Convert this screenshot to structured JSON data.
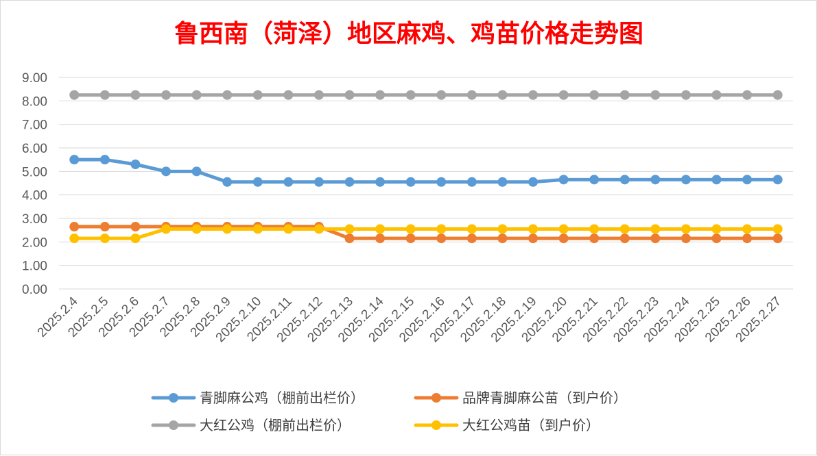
{
  "chart_data": {
    "type": "line",
    "title": "鲁西南（菏泽）地区麻鸡、鸡苗价格走势图",
    "xlabel": "",
    "ylabel": "",
    "ylim": [
      0,
      9
    ],
    "yticks": [
      "0.00",
      "1.00",
      "2.00",
      "3.00",
      "4.00",
      "5.00",
      "6.00",
      "7.00",
      "8.00",
      "9.00"
    ],
    "grid": true,
    "legend_position": "bottom",
    "categories": [
      "2025.2.4",
      "2025.2.5",
      "2025.2.6",
      "2025.2.7",
      "2025.2.8",
      "2025.2.9",
      "2025.2.10",
      "2025.2.11",
      "2025.2.12",
      "2025.2.13",
      "2025.2.14",
      "2025.2.15",
      "2025.2.16",
      "2025.2.17",
      "2025.2.18",
      "2025.2.19",
      "2025.2.20",
      "2025.2.21",
      "2025.2.22",
      "2025.2.23",
      "2025.2.24",
      "2025.2.25",
      "2025.2.26",
      "2025.2.27"
    ],
    "series": [
      {
        "name": "青脚麻公鸡（棚前出栏价）",
        "color": "#5b9bd5",
        "values": [
          5.5,
          5.5,
          5.3,
          5.0,
          5.0,
          4.55,
          4.55,
          4.55,
          4.55,
          4.55,
          4.55,
          4.55,
          4.55,
          4.55,
          4.55,
          4.55,
          4.65,
          4.65,
          4.65,
          4.65,
          4.65,
          4.65,
          4.65,
          4.65
        ]
      },
      {
        "name": "品牌青脚麻公苗（到户价）",
        "color": "#ed7d31",
        "values": [
          2.65,
          2.65,
          2.65,
          2.65,
          2.65,
          2.65,
          2.65,
          2.65,
          2.65,
          2.15,
          2.15,
          2.15,
          2.15,
          2.15,
          2.15,
          2.15,
          2.15,
          2.15,
          2.15,
          2.15,
          2.15,
          2.15,
          2.15,
          2.15
        ]
      },
      {
        "name": "大红公鸡（棚前出栏价）",
        "color": "#a5a5a5",
        "values": [
          8.25,
          8.25,
          8.25,
          8.25,
          8.25,
          8.25,
          8.25,
          8.25,
          8.25,
          8.25,
          8.25,
          8.25,
          8.25,
          8.25,
          8.25,
          8.25,
          8.25,
          8.25,
          8.25,
          8.25,
          8.25,
          8.25,
          8.25,
          8.25
        ]
      },
      {
        "name": "大红公鸡苗（到户价）",
        "color": "#ffc000",
        "values": [
          2.15,
          2.15,
          2.15,
          2.55,
          2.55,
          2.55,
          2.55,
          2.55,
          2.55,
          2.55,
          2.55,
          2.55,
          2.55,
          2.55,
          2.55,
          2.55,
          2.55,
          2.55,
          2.55,
          2.55,
          2.55,
          2.55,
          2.55,
          2.55
        ]
      }
    ]
  }
}
